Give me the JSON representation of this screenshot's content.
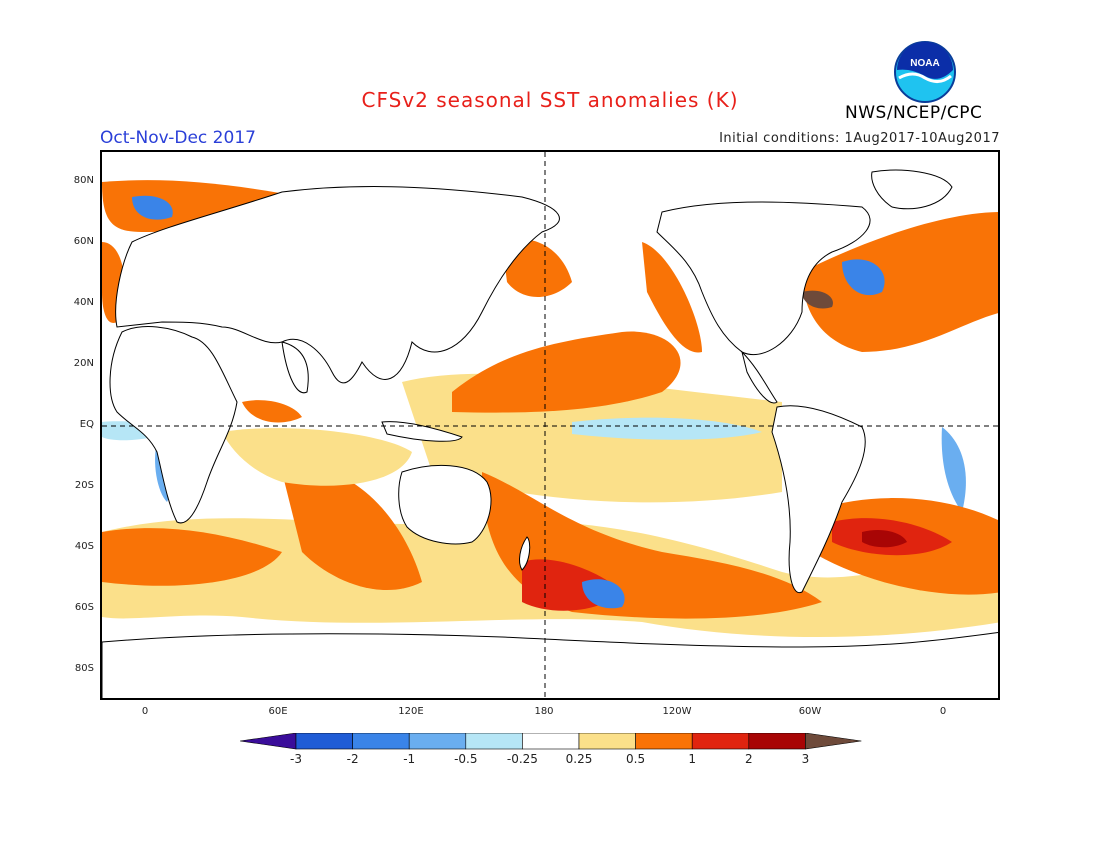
{
  "header": {
    "title": "CFSv2 seasonal SST anomalies (K)",
    "period": "Oct-Nov-Dec 2017",
    "initial_conditions": "Initial conditions: 1Aug2017-10Aug2017",
    "agency": "NWS/NCEP/CPC",
    "logo_text": "NOAA"
  },
  "axes": {
    "lat_labels": [
      "80N",
      "60N",
      "40N",
      "20N",
      "EQ",
      "20S",
      "40S",
      "60S",
      "80S"
    ],
    "lon_labels": [
      "0",
      "60E",
      "120E",
      "180",
      "120W",
      "60W",
      "0"
    ]
  },
  "colorbar": {
    "labels": [
      "-3",
      "-2",
      "-1",
      "-0.5",
      "-0.25",
      "0.25",
      "0.5",
      "1",
      "2",
      "3"
    ],
    "colors": [
      "#3a0d9a",
      "#1f5cd6",
      "#3a84e8",
      "#6aaef0",
      "#b6e6f6",
      "#ffffff",
      "#fbe08a",
      "#f97306",
      "#e0240f",
      "#a80505",
      "#6e4a3a"
    ]
  },
  "colors": {
    "title": "#e8201a",
    "period": "#2a3fd8",
    "land_outline": "#000000"
  }
}
